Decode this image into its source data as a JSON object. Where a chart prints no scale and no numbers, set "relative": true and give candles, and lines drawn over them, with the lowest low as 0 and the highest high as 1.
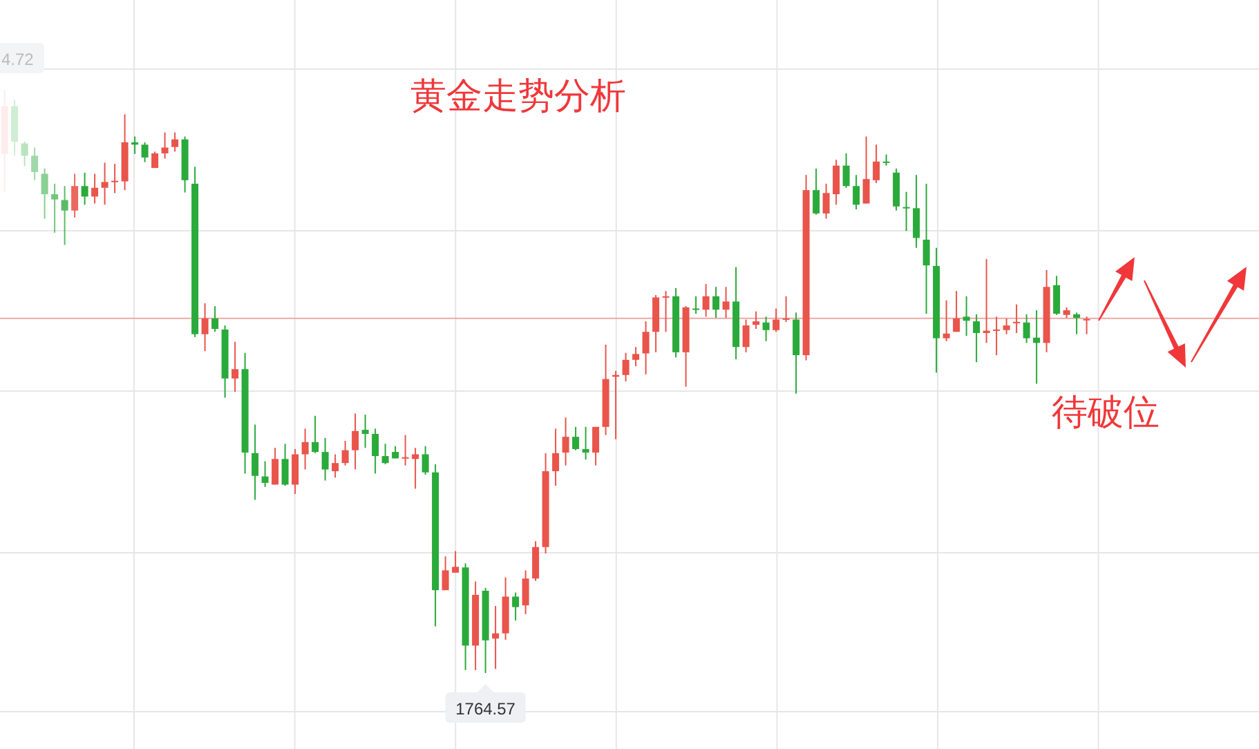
{
  "chart_data": {
    "type": "candlestick",
    "title": "黄金走势分析",
    "relative": true,
    "grid": true,
    "categories": [
      null,
      null,
      null,
      null,
      null,
      null,
      null,
      null,
      null,
      null,
      null,
      null,
      null,
      null,
      null,
      null,
      null,
      null,
      null,
      null,
      null,
      null,
      null,
      null,
      null,
      null,
      null,
      null,
      null,
      null,
      null,
      null,
      null,
      null,
      null,
      null,
      null,
      null,
      null,
      null,
      null,
      null,
      null,
      null,
      null,
      null,
      null,
      null,
      null,
      null,
      null,
      null,
      null,
      null,
      null,
      null,
      null,
      null,
      null,
      null,
      null,
      null,
      null,
      null,
      null,
      null,
      null,
      null,
      null,
      null,
      null,
      null,
      null,
      null,
      null,
      null,
      null,
      null,
      null,
      null,
      null,
      null,
      null,
      null,
      null,
      null,
      null,
      null,
      null,
      null,
      null,
      null,
      null,
      null,
      null,
      null,
      null,
      null,
      null,
      null,
      null,
      null,
      null,
      null,
      null,
      null,
      null,
      null,
      null
    ],
    "ohlc": [
      [
        0.89,
        1.0,
        0.825,
        0.972
      ],
      [
        0.972,
        0.983,
        0.887,
        0.911
      ],
      [
        0.908,
        0.911,
        0.869,
        0.887
      ],
      [
        0.887,
        0.901,
        0.845,
        0.859
      ],
      [
        0.856,
        0.865,
        0.779,
        0.821
      ],
      [
        0.821,
        0.839,
        0.755,
        0.812
      ],
      [
        0.811,
        0.835,
        0.734,
        0.793
      ],
      [
        0.793,
        0.856,
        0.781,
        0.835
      ],
      [
        0.835,
        0.858,
        0.803,
        0.817
      ],
      [
        0.817,
        0.856,
        0.805,
        0.832
      ],
      [
        0.832,
        0.875,
        0.803,
        0.842
      ],
      [
        0.843,
        0.873,
        0.823,
        0.844
      ],
      [
        0.843,
        0.958,
        0.828,
        0.91
      ],
      [
        0.91,
        0.92,
        0.89,
        0.906
      ],
      [
        0.906,
        0.91,
        0.876,
        0.884
      ],
      [
        0.866,
        0.894,
        0.866,
        0.891
      ],
      [
        0.891,
        0.927,
        0.882,
        0.901
      ],
      [
        0.902,
        0.927,
        0.894,
        0.915
      ],
      [
        0.915,
        0.92,
        0.824,
        0.845
      ],
      [
        0.839,
        0.868,
        0.576,
        0.581
      ],
      [
        0.581,
        0.634,
        0.552,
        0.608
      ],
      [
        0.608,
        0.629,
        0.585,
        0.59
      ],
      [
        0.589,
        0.596,
        0.472,
        0.505
      ],
      [
        0.505,
        0.568,
        0.482,
        0.521
      ],
      [
        0.521,
        0.549,
        0.342,
        0.378
      ],
      [
        0.377,
        0.426,
        0.297,
        0.338
      ],
      [
        0.337,
        0.363,
        0.319,
        0.326
      ],
      [
        0.323,
        0.386,
        0.323,
        0.367
      ],
      [
        0.367,
        0.393,
        0.321,
        0.323
      ],
      [
        0.323,
        0.384,
        0.307,
        0.375
      ],
      [
        0.375,
        0.419,
        0.349,
        0.396
      ],
      [
        0.396,
        0.441,
        0.377,
        0.379
      ],
      [
        0.379,
        0.403,
        0.33,
        0.349
      ],
      [
        0.346,
        0.375,
        0.335,
        0.36
      ],
      [
        0.36,
        0.398,
        0.356,
        0.382
      ],
      [
        0.382,
        0.445,
        0.349,
        0.415
      ],
      [
        0.417,
        0.443,
        0.386,
        0.41
      ],
      [
        0.41,
        0.419,
        0.342,
        0.372
      ],
      [
        0.372,
        0.393,
        0.358,
        0.36
      ],
      [
        0.379,
        0.389,
        0.368,
        0.368
      ],
      [
        0.368,
        0.408,
        0.356,
        0.37
      ],
      [
        0.367,
        0.386,
        0.316,
        0.375
      ],
      [
        0.375,
        0.389,
        0.34,
        0.344
      ],
      [
        0.344,
        0.358,
        0.08,
        0.142
      ],
      [
        0.142,
        0.2,
        0.142,
        0.176
      ],
      [
        0.172,
        0.209,
        0.172,
        0.182
      ],
      [
        0.181,
        0.188,
        0.005,
        0.047
      ],
      [
        0.047,
        0.157,
        0.005,
        0.134
      ],
      [
        0.141,
        0.146,
        0.0,
        0.056
      ],
      [
        0.059,
        0.115,
        0.007,
        0.068
      ],
      [
        0.068,
        0.164,
        0.057,
        0.131
      ],
      [
        0.131,
        0.138,
        0.09,
        0.113
      ],
      [
        0.116,
        0.176,
        0.101,
        0.162
      ],
      [
        0.162,
        0.226,
        0.158,
        0.216
      ],
      [
        0.216,
        0.377,
        0.205,
        0.346
      ],
      [
        0.346,
        0.419,
        0.321,
        0.377
      ],
      [
        0.378,
        0.438,
        0.356,
        0.405
      ],
      [
        0.405,
        0.422,
        0.382,
        0.384
      ],
      [
        0.384,
        0.422,
        0.366,
        0.378
      ],
      [
        0.378,
        0.422,
        0.356,
        0.422
      ],
      [
        0.422,
        0.563,
        0.408,
        0.504
      ],
      [
        0.508,
        0.518,
        0.401,
        0.511
      ],
      [
        0.511,
        0.549,
        0.5,
        0.537
      ],
      [
        0.537,
        0.559,
        0.526,
        0.547
      ],
      [
        0.548,
        0.603,
        0.512,
        0.585
      ],
      [
        0.585,
        0.648,
        0.55,
        0.644
      ],
      [
        0.644,
        0.655,
        0.585,
        0.646
      ],
      [
        0.646,
        0.66,
        0.541,
        0.55
      ],
      [
        0.55,
        0.629,
        0.491,
        0.627
      ],
      [
        0.625,
        0.646,
        0.616,
        0.623
      ],
      [
        0.623,
        0.667,
        0.611,
        0.646
      ],
      [
        0.646,
        0.662,
        0.609,
        0.623
      ],
      [
        0.623,
        0.662,
        0.609,
        0.637
      ],
      [
        0.637,
        0.696,
        0.538,
        0.559
      ],
      [
        0.559,
        0.606,
        0.55,
        0.596
      ],
      [
        0.597,
        0.62,
        0.59,
        0.603
      ],
      [
        0.601,
        0.611,
        0.569,
        0.588
      ],
      [
        0.588,
        0.625,
        0.585,
        0.606
      ],
      [
        0.607,
        0.646,
        0.602,
        0.608
      ],
      [
        0.606,
        0.618,
        0.479,
        0.545
      ],
      [
        0.545,
        0.854,
        0.536,
        0.828
      ],
      [
        0.828,
        0.865,
        0.786,
        0.788
      ],
      [
        0.788,
        0.839,
        0.779,
        0.823
      ],
      [
        0.821,
        0.88,
        0.803,
        0.87
      ],
      [
        0.87,
        0.891,
        0.832,
        0.835
      ],
      [
        0.835,
        0.854,
        0.795,
        0.803
      ],
      [
        0.805,
        0.92,
        0.805,
        0.847
      ],
      [
        0.845,
        0.906,
        0.84,
        0.877
      ],
      [
        0.877,
        0.889,
        0.87,
        0.876
      ],
      [
        0.858,
        0.865,
        0.793,
        0.8
      ],
      [
        0.799,
        0.825,
        0.758,
        0.798
      ],
      [
        0.797,
        0.854,
        0.729,
        0.746
      ],
      [
        0.743,
        0.839,
        0.616,
        0.699
      ],
      [
        0.698,
        0.729,
        0.515,
        0.574
      ],
      [
        0.574,
        0.639,
        0.569,
        0.582
      ],
      [
        0.585,
        0.655,
        0.585,
        0.608
      ],
      [
        0.611,
        0.646,
        0.578,
        0.604
      ],
      [
        0.603,
        0.615,
        0.533,
        0.583
      ],
      [
        0.583,
        0.71,
        0.566,
        0.587
      ],
      [
        0.588,
        0.611,
        0.545,
        0.589
      ],
      [
        0.588,
        0.608,
        0.581,
        0.596
      ],
      [
        0.6,
        0.632,
        0.583,
        0.602
      ],
      [
        0.601,
        0.615,
        0.566,
        0.574
      ],
      [
        0.575,
        0.622,
        0.496,
        0.566
      ],
      [
        0.566,
        0.691,
        0.55,
        0.662
      ],
      [
        0.665,
        0.681,
        0.614,
        0.616
      ],
      [
        0.614,
        0.627,
        0.609,
        0.622
      ],
      [
        0.615,
        0.618,
        0.581,
        0.609
      ],
      [
        0.606,
        0.611,
        0.581,
        0.607
      ]
    ],
    "colors": [
      "#e9544b",
      "#2aaa3a",
      "#2aaa3a",
      "#2aaa3a",
      "#2aaa3a",
      "#2aaa3a",
      "#2aaa3a",
      "#e9544b",
      "#2aaa3a",
      "#e9544b",
      "#e9544b",
      "#e9544b",
      "#e9544b",
      "#2aaa3a",
      "#2aaa3a",
      "#e9544b",
      "#e9544b",
      "#e9544b",
      "#2aaa3a",
      "#2aaa3a",
      "#e9544b",
      "#2aaa3a",
      "#2aaa3a",
      "#e9544b",
      "#2aaa3a",
      "#2aaa3a",
      "#2aaa3a",
      "#e9544b",
      "#2aaa3a",
      "#e9544b",
      "#e9544b",
      "#2aaa3a",
      "#2aaa3a",
      "#e9544b",
      "#e9544b",
      "#e9544b",
      "#2aaa3a",
      "#2aaa3a",
      "#2aaa3a",
      "#2aaa3a",
      "#e9544b",
      "#e9544b",
      "#2aaa3a",
      "#2aaa3a",
      "#e9544b",
      "#e9544b",
      "#2aaa3a",
      "#e9544b",
      "#2aaa3a",
      "#e9544b",
      "#e9544b",
      "#2aaa3a",
      "#e9544b",
      "#e9544b",
      "#e9544b",
      "#e9544b",
      "#e9544b",
      "#2aaa3a",
      "#2aaa3a",
      "#e9544b",
      "#e9544b",
      "#e9544b",
      "#e9544b",
      "#e9544b",
      "#e9544b",
      "#e9544b",
      "#e9544b",
      "#2aaa3a",
      "#e9544b",
      "#2aaa3a",
      "#e9544b",
      "#2aaa3a",
      "#e9544b",
      "#2aaa3a",
      "#e9544b",
      "#e9544b",
      "#2aaa3a",
      "#e9544b",
      "#e9544b",
      "#2aaa3a",
      "#e9544b",
      "#2aaa3a",
      "#e9544b",
      "#e9544b",
      "#2aaa3a",
      "#2aaa3a",
      "#e9544b",
      "#e9544b",
      "#2aaa3a",
      "#2aaa3a",
      "#2aaa3a",
      "#2aaa3a",
      "#2aaa3a",
      "#2aaa3a",
      "#e9544b",
      "#e9544b",
      "#2aaa3a",
      "#2aaa3a",
      "#e9544b",
      "#e9544b",
      "#e9544b",
      "#e9544b",
      "#2aaa3a",
      "#2aaa3a",
      "#e9544b",
      "#2aaa3a",
      "#e9544b",
      "#2aaa3a",
      "#e9544b"
    ],
    "ref_lines": [
      {
        "axis": "y",
        "value": 0.608,
        "color": "#eda8a4"
      }
    ],
    "annotations": [
      "4.72",
      {
        "text": "1764.57",
        "y": 0
      },
      "待破位"
    ]
  }
}
